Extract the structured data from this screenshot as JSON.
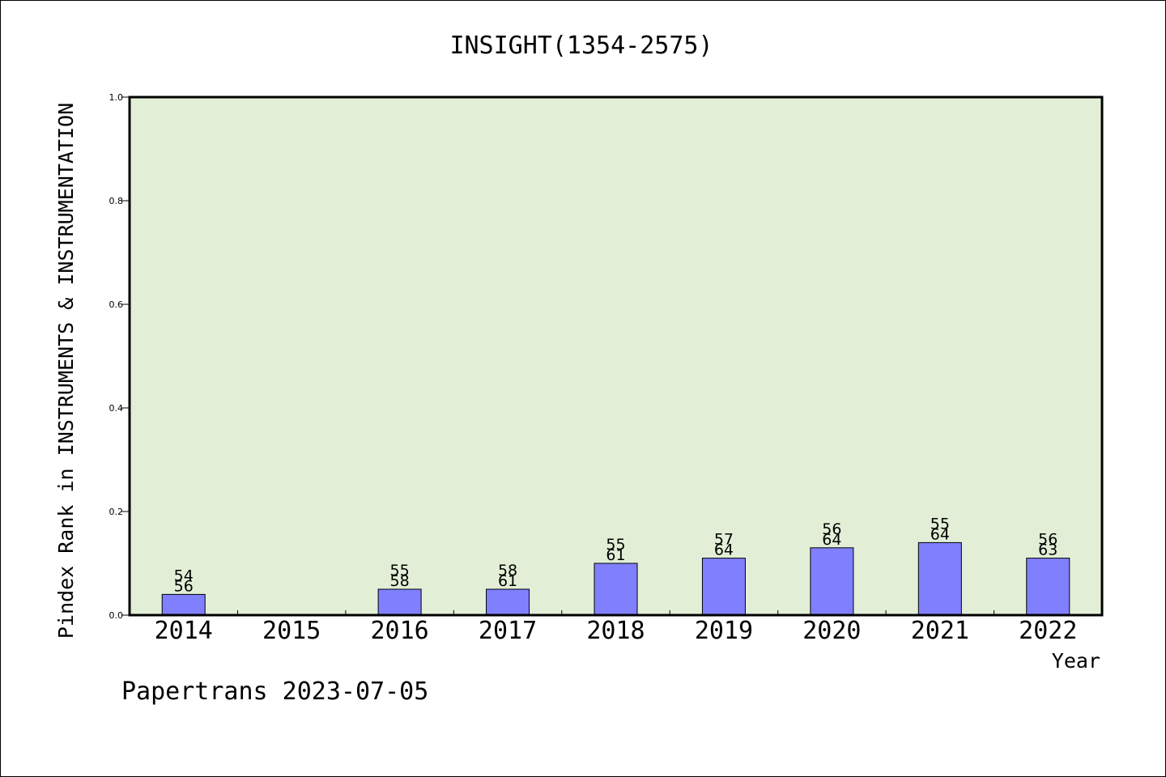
{
  "chart_data": {
    "type": "bar",
    "title": "INSIGHT(1354-2575)",
    "xlabel": "Year",
    "ylabel": "Pindex Rank in INSTRUMENTS & INSTRUMENTATION",
    "categories": [
      "2014",
      "2015",
      "2016",
      "2017",
      "2018",
      "2019",
      "2020",
      "2021",
      "2022"
    ],
    "values": [
      0.04,
      null,
      0.05,
      0.05,
      0.1,
      0.11,
      0.13,
      0.14,
      0.11
    ],
    "label_top": [
      "54",
      "",
      "55",
      "58",
      "55",
      "57",
      "56",
      "55",
      "56"
    ],
    "label_bottom": [
      "56",
      "",
      "58",
      "61",
      "61",
      "64",
      "64",
      "64",
      "63"
    ],
    "ylim": [
      0,
      1.0
    ],
    "yticks": [
      "0.0",
      "0.2",
      "0.4",
      "0.6",
      "0.8",
      "1.0"
    ],
    "grid": false,
    "colors": {
      "plot_bg": "#e2efd6",
      "bar": "#8080ff"
    }
  },
  "footer": "Papertrans 2023-07-05"
}
